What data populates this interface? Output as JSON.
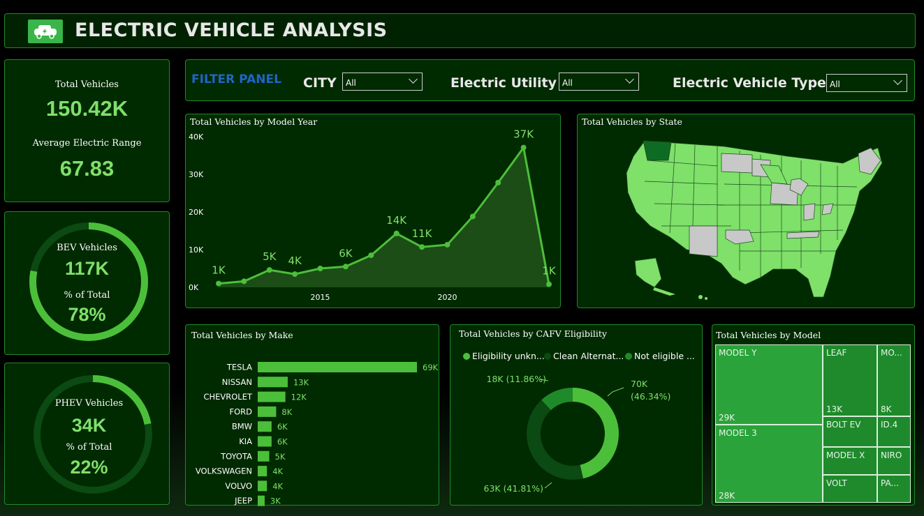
{
  "header": {
    "title": "ELECTRIC VEHICLE ANALYSIS",
    "logo_icon": "ev-car-icon"
  },
  "kpis": {
    "total_vehicles_label": "Total Vehicles",
    "total_vehicles_value": "150.42K",
    "avg_range_label": "Average Electric Range",
    "avg_range_value": "67.83"
  },
  "bev": {
    "label": "BEV Vehicles",
    "value": "117K",
    "pct_label": "% of Total",
    "pct_value": "78%",
    "fraction": 0.78
  },
  "phev": {
    "label": "PHEV Vehicles",
    "value": "34K",
    "pct_label": "% of Total",
    "pct_value": "22%",
    "fraction": 0.22
  },
  "filters": {
    "title": "FILTER PANEL",
    "city_label": "CITY",
    "city_value": "All",
    "utility_label": "Electric Utility",
    "utility_value": "All",
    "type_label": "Electric Vehicle Type",
    "type_value": "All"
  },
  "colors": {
    "accent": "#4cbf3a",
    "light": "#7fe06a",
    "dark_bg": "#002a00",
    "border": "#1f8a2a",
    "filter_title": "#1e66c8"
  },
  "map": {
    "title": "Total Vehicles by State"
  },
  "chart_data": [
    {
      "type": "area",
      "title": "Total Vehicles by Model Year",
      "x": [
        2011,
        2012,
        2013,
        2014,
        2015,
        2016,
        2017,
        2018,
        2019,
        2020,
        2021,
        2022,
        2023,
        2024
      ],
      "values": [
        1,
        1.6,
        4.6,
        3.5,
        5,
        5.5,
        8.5,
        14.3,
        10.7,
        11.3,
        18.8,
        27.8,
        37.1,
        0.8
      ],
      "data_labels": [
        "1K",
        "",
        "5K",
        "4K",
        "",
        "6K",
        "",
        "14K",
        "11K",
        "",
        "",
        "",
        "37K",
        "1K"
      ],
      "xticks": [
        2015,
        2020
      ],
      "yticks": [
        "0K",
        "10K",
        "20K",
        "30K",
        "40K"
      ],
      "ylim": [
        0,
        40
      ]
    },
    {
      "type": "bar",
      "title": "Total Vehicles by Make",
      "categories": [
        "TESLA",
        "NISSAN",
        "CHEVROLET",
        "FORD",
        "BMW",
        "KIA",
        "TOYOTA",
        "VOLKSWAGEN",
        "VOLVO",
        "JEEP"
      ],
      "values": [
        69,
        13,
        12,
        8,
        6,
        6,
        5,
        4,
        4,
        3
      ],
      "labels": [
        "69K",
        "13K",
        "12K",
        "8K",
        "6K",
        "6K",
        "5K",
        "4K",
        "4K",
        "3K"
      ]
    },
    {
      "type": "pie",
      "title": "Total Vehicles by CAFV Eligibility",
      "legend": [
        "Eligibility unkn...",
        "Clean Alternat...",
        "Not eligible ..."
      ],
      "values": [
        46.34,
        41.81,
        11.86
      ],
      "labels": [
        "70K",
        "63K (41.81%)",
        "18K (11.86%)"
      ],
      "pct_label": "(46.34%)",
      "colors": [
        "#4cbf3a",
        "#0b4a12",
        "#1f8a2a"
      ]
    },
    {
      "type": "table",
      "title": "Total Vehicles by Model",
      "cells": [
        {
          "name": "MODEL Y",
          "value": "29K"
        },
        {
          "name": "MODEL 3",
          "value": "28K"
        },
        {
          "name": "LEAF",
          "value": "13K"
        },
        {
          "name": "MO...",
          "value": "8K"
        },
        {
          "name": "BOLT EV",
          "value": ""
        },
        {
          "name": "ID.4",
          "value": ""
        },
        {
          "name": "MODEL X",
          "value": ""
        },
        {
          "name": "NIRO",
          "value": ""
        },
        {
          "name": "VOLT",
          "value": ""
        },
        {
          "name": "PA...",
          "value": ""
        }
      ]
    }
  ]
}
